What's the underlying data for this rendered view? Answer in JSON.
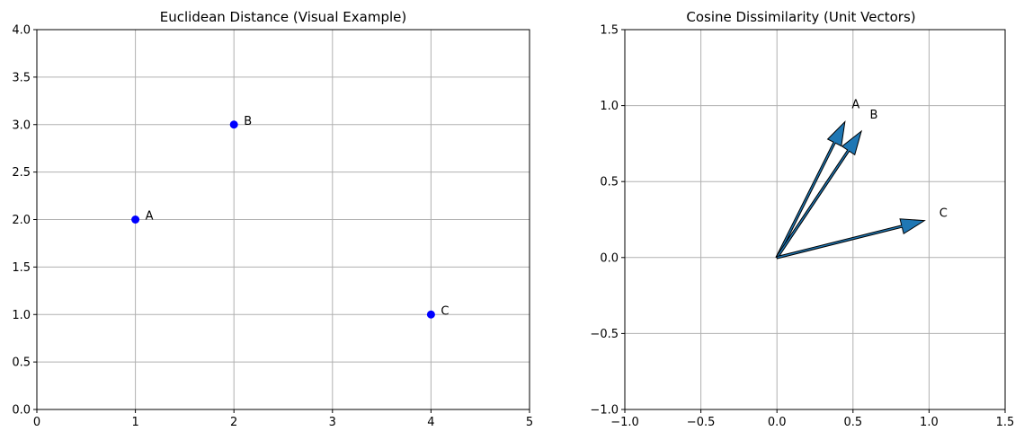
{
  "chart_data": [
    {
      "type": "scatter",
      "title": "Euclidean Distance (Visual Example)",
      "xlabel": "",
      "ylabel": "",
      "xlim": [
        0,
        5
      ],
      "ylim": [
        0,
        4
      ],
      "xticks": [
        0,
        1,
        2,
        3,
        4,
        5
      ],
      "xtick_labels": [
        "0",
        "1",
        "2",
        "3",
        "4",
        "5"
      ],
      "yticks": [
        0.0,
        0.5,
        1.0,
        1.5,
        2.0,
        2.5,
        3.0,
        3.5,
        4.0
      ],
      "ytick_labels": [
        "0.0",
        "0.5",
        "1.0",
        "1.5",
        "2.0",
        "2.5",
        "3.0",
        "3.5",
        "4.0"
      ],
      "grid": true,
      "marker_color": "#0000ff",
      "points": [
        {
          "label": "A",
          "x": 1,
          "y": 2
        },
        {
          "label": "B",
          "x": 2,
          "y": 3
        },
        {
          "label": "C",
          "x": 4,
          "y": 1
        }
      ]
    },
    {
      "type": "quiver",
      "title": "Cosine Dissimilarity (Unit Vectors)",
      "xlabel": "",
      "ylabel": "",
      "xlim": [
        -1.0,
        1.5
      ],
      "ylim": [
        -1.0,
        1.5
      ],
      "xticks": [
        -1.0,
        -0.5,
        0.0,
        0.5,
        1.0,
        1.5
      ],
      "xtick_labels": [
        "−1.0",
        "−0.5",
        "0.0",
        "0.5",
        "1.0",
        "1.5"
      ],
      "yticks": [
        -1.0,
        -0.5,
        0.0,
        0.5,
        1.0,
        1.5
      ],
      "ytick_labels": [
        "−1.0",
        "−0.5",
        "0.0",
        "0.5",
        "1.0",
        "1.5"
      ],
      "grid": true,
      "arrow_color": "#1f77b4",
      "vectors": [
        {
          "label": "A",
          "x": 0.447,
          "y": 0.894
        },
        {
          "label": "B",
          "x": 0.555,
          "y": 0.832
        },
        {
          "label": "C",
          "x": 0.97,
          "y": 0.243
        }
      ]
    }
  ]
}
